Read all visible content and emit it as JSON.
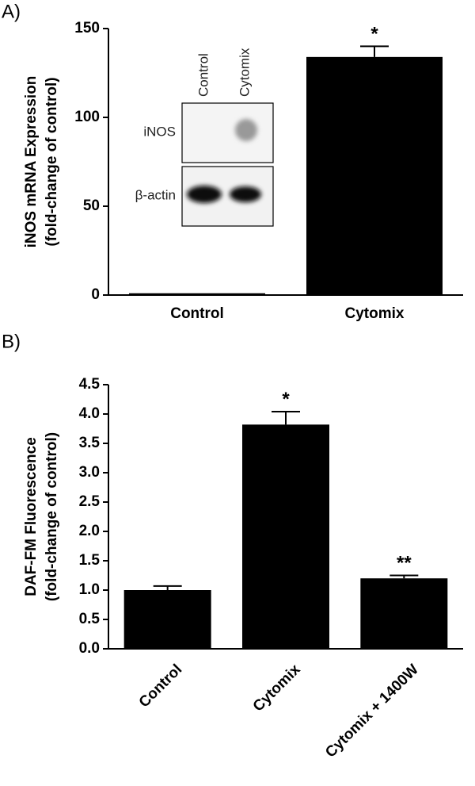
{
  "chart_data": [
    {
      "type": "bar",
      "panel_label": "A)",
      "ylabel": [
        "iNOS mRNA Expression",
        "(fold-change of control)"
      ],
      "categories": [
        "Control",
        "Cytomix"
      ],
      "values": [
        1,
        134
      ],
      "errors": [
        0,
        6
      ],
      "annotations": [
        null,
        "*"
      ],
      "color": "#000000",
      "ylim": [
        0,
        150
      ],
      "yticks": [
        0,
        50,
        100,
        150
      ],
      "inset": {
        "columns": [
          "Control",
          "Cytomix"
        ],
        "rows": [
          "iNOS",
          "β-actin"
        ]
      }
    },
    {
      "type": "bar",
      "panel_label": "B)",
      "ylabel": [
        "DAF-FM Fluorescence",
        "(fold-change of control)"
      ],
      "categories": [
        "Control",
        "Cytomix",
        "Cytomix + 1400W"
      ],
      "values": [
        1.0,
        3.82,
        1.2
      ],
      "errors": [
        0.07,
        0.22,
        0.05
      ],
      "annotations": [
        null,
        "*",
        "**"
      ],
      "color": "#000000",
      "ylim": [
        0,
        4.5
      ],
      "yticks": [
        {
          "value": 0,
          "label": "0.0"
        },
        0.5,
        {
          "value": 1,
          "label": "1.0"
        },
        1.5,
        {
          "value": 2,
          "label": "2.0"
        },
        2.5,
        {
          "value": 3,
          "label": "3.0"
        },
        3.5,
        {
          "value": 4,
          "label": "4.0"
        },
        4.5
      ]
    }
  ]
}
